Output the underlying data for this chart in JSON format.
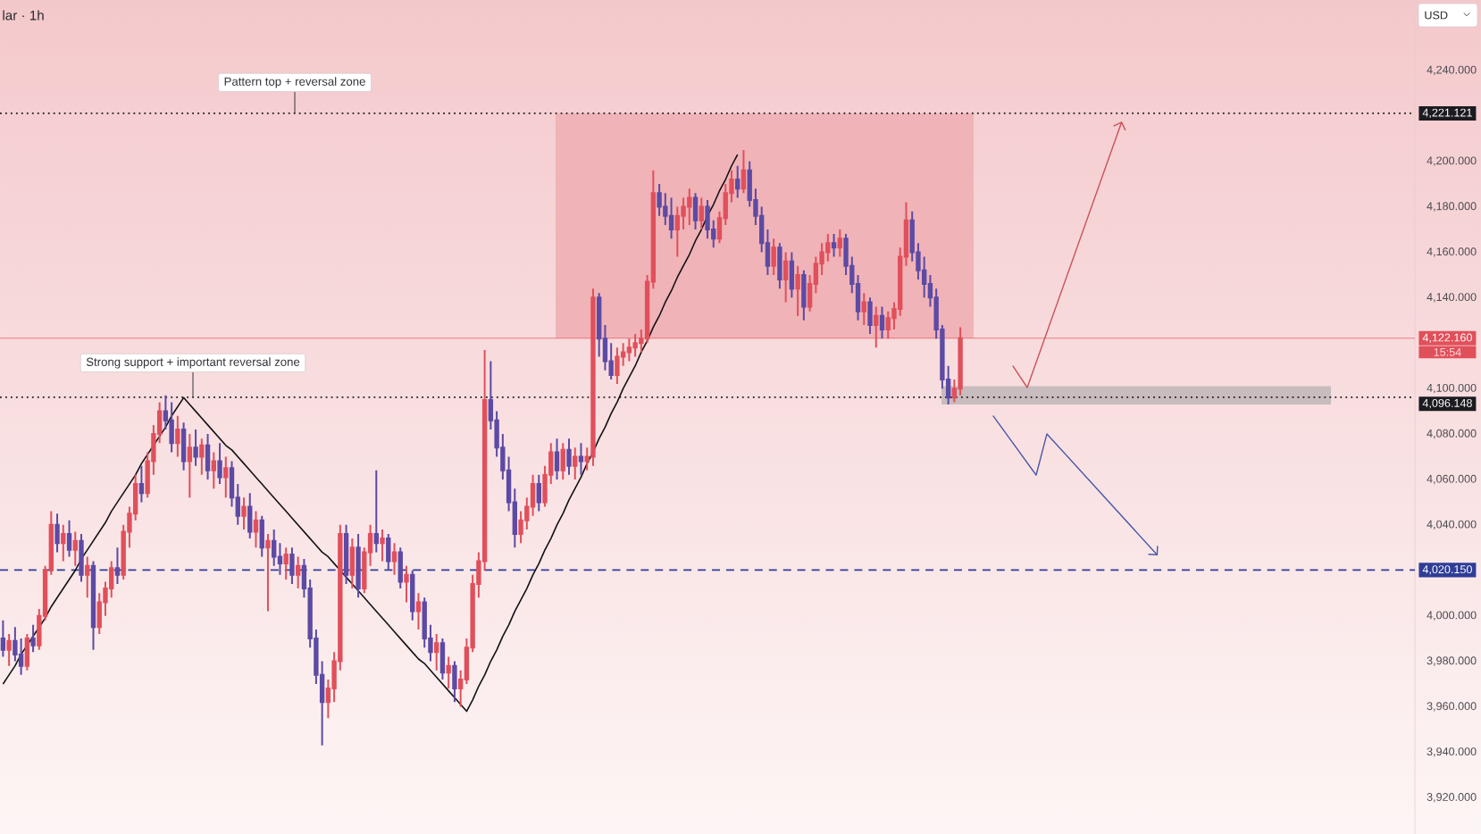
{
  "chart_data": {
    "type": "candlestick",
    "title": "lar · 1h",
    "tick_labels": "y",
    "categories": [
      null,
      null,
      null,
      null,
      null,
      null,
      null,
      null,
      null,
      null,
      null,
      null,
      null,
      null,
      null,
      null,
      null,
      null,
      null,
      null,
      null,
      null,
      null,
      null,
      null,
      null,
      null,
      null,
      null,
      null,
      null,
      null,
      null,
      null,
      null,
      null,
      null,
      null,
      null,
      null,
      null,
      null,
      null,
      null,
      null,
      null,
      null,
      null,
      null,
      null,
      null,
      null,
      null,
      null,
      null,
      null,
      null,
      null,
      null,
      null,
      null,
      null,
      null,
      null,
      null,
      null,
      null,
      null,
      null,
      null,
      null,
      null,
      null,
      null,
      null,
      null,
      null,
      null,
      null,
      null,
      null,
      null,
      null,
      null,
      null,
      null,
      null,
      null,
      null,
      null,
      null,
      null,
      null,
      null,
      null,
      null,
      null,
      null,
      null,
      null,
      null,
      null,
      null,
      null,
      null,
      null,
      null,
      null,
      null,
      null,
      null,
      null,
      null,
      null,
      null,
      null,
      null,
      null,
      null,
      null,
      null,
      null,
      null,
      null,
      null,
      null,
      null,
      null,
      null,
      null,
      null,
      null,
      null,
      null,
      null,
      null,
      null,
      null,
      null,
      null,
      null,
      null,
      null,
      null,
      null,
      null,
      null,
      null,
      null,
      null,
      null,
      null,
      null,
      null,
      null,
      null,
      null,
      null,
      null,
      null,
      null,
      null,
      null,
      null,
      null,
      null,
      null,
      null,
      null,
      null,
      null,
      null,
      null,
      null,
      null,
      null,
      null,
      null,
      null,
      null,
      null,
      null,
      null,
      null,
      null,
      null,
      null,
      null,
      null,
      null,
      null,
      null,
      null,
      null,
      null,
      null,
      null,
      null,
      null,
      null,
      null,
      null,
      null,
      null,
      null,
      null,
      null,
      null,
      null,
      null,
      null,
      null,
      null,
      null,
      null,
      null,
      null,
      null,
      null,
      null,
      null,
      null,
      null,
      null,
      null,
      null,
      null,
      null,
      null,
      null,
      null,
      null,
      null,
      null,
      null
    ],
    "ohlc": [
      [
        3990,
        3998,
        3982,
        3985
      ],
      [
        3985,
        3992,
        3978,
        3989
      ],
      [
        3989,
        3995,
        3980,
        3983
      ],
      [
        3983,
        3990,
        3974,
        3978
      ],
      [
        3978,
        3992,
        3976,
        3990
      ],
      [
        3990,
        3996,
        3984,
        3987
      ],
      [
        3987,
        4003,
        3985,
        4000
      ],
      [
        4000,
        4022,
        3998,
        4020
      ],
      [
        4020,
        4046,
        4018,
        4040
      ],
      [
        4040,
        4045,
        4028,
        4032
      ],
      [
        4032,
        4040,
        4024,
        4036
      ],
      [
        4036,
        4042,
        4026,
        4029
      ],
      [
        4029,
        4037,
        4022,
        4033
      ],
      [
        4033,
        4036,
        4015,
        4018
      ],
      [
        4018,
        4026,
        4008,
        4022
      ],
      [
        4022,
        4024,
        3985,
        3995
      ],
      [
        3995,
        4010,
        3992,
        4006
      ],
      [
        4006,
        4015,
        4000,
        4012
      ],
      [
        4012,
        4024,
        4008,
        4021
      ],
      [
        4021,
        4030,
        4014,
        4018
      ],
      [
        4018,
        4040,
        4016,
        4037
      ],
      [
        4037,
        4048,
        4030,
        4045
      ],
      [
        4045,
        4062,
        4042,
        4058
      ],
      [
        4058,
        4066,
        4050,
        4054
      ],
      [
        4054,
        4072,
        4052,
        4068
      ],
      [
        4068,
        4084,
        4062,
        4080
      ],
      [
        4080,
        4094,
        4076,
        4090
      ],
      [
        4090,
        4097,
        4082,
        4086
      ],
      [
        4086,
        4094,
        4072,
        4076
      ],
      [
        4076,
        4088,
        4070,
        4082
      ],
      [
        4082,
        4085,
        4064,
        4068
      ],
      [
        4068,
        4080,
        4052,
        4074
      ],
      [
        4074,
        4082,
        4066,
        4070
      ],
      [
        4070,
        4078,
        4062,
        4075
      ],
      [
        4075,
        4080,
        4060,
        4064
      ],
      [
        4064,
        4072,
        4056,
        4068
      ],
      [
        4068,
        4076,
        4058,
        4061
      ],
      [
        4061,
        4070,
        4052,
        4065
      ],
      [
        4065,
        4068,
        4048,
        4052
      ],
      [
        4052,
        4058,
        4040,
        4044
      ],
      [
        4044,
        4052,
        4038,
        4048
      ],
      [
        4048,
        4054,
        4034,
        4037
      ],
      [
        4037,
        4046,
        4030,
        4042
      ],
      [
        4042,
        4044,
        4026,
        4030
      ],
      [
        4030,
        4036,
        4002,
        4033
      ],
      [
        4033,
        4038,
        4022,
        4026
      ],
      [
        4026,
        4032,
        4018,
        4023
      ],
      [
        4023,
        4030,
        4016,
        4027
      ],
      [
        4027,
        4030,
        4014,
        4018
      ],
      [
        4018,
        4026,
        4012,
        4022
      ],
      [
        4022,
        4025,
        4008,
        4012
      ],
      [
        4012,
        4016,
        3986,
        3990
      ],
      [
        3990,
        3994,
        3970,
        3974
      ],
      [
        3974,
        3980,
        3943,
        3962
      ],
      [
        3962,
        3972,
        3955,
        3968
      ],
      [
        3968,
        3984,
        3962,
        3980
      ],
      [
        3980,
        4040,
        3976,
        4036
      ],
      [
        4036,
        4040,
        4014,
        4018
      ],
      [
        4018,
        4034,
        4012,
        4030
      ],
      [
        4030,
        4036,
        4008,
        4012
      ],
      [
        4012,
        4030,
        4010,
        4028
      ],
      [
        4028,
        4040,
        4022,
        4036
      ],
      [
        4036,
        4064,
        4028,
        4032
      ],
      [
        4032,
        4038,
        4024,
        4034
      ],
      [
        4034,
        4036,
        4020,
        4024
      ],
      [
        4024,
        4032,
        4018,
        4028
      ],
      [
        4028,
        4030,
        4012,
        4015
      ],
      [
        4015,
        4022,
        4006,
        4018
      ],
      [
        4018,
        4020,
        3998,
        4002
      ],
      [
        4002,
        4010,
        3994,
        4006
      ],
      [
        4006,
        4008,
        3986,
        3990
      ],
      [
        3990,
        3996,
        3980,
        3984
      ],
      [
        3984,
        3992,
        3976,
        3988
      ],
      [
        3988,
        3990,
        3972,
        3975
      ],
      [
        3975,
        3982,
        3968,
        3978
      ],
      [
        3978,
        3980,
        3962,
        3968
      ],
      [
        3968,
        3976,
        3960,
        3972
      ],
      [
        3972,
        3990,
        3970,
        3986
      ],
      [
        3986,
        4018,
        3984,
        4014
      ],
      [
        4014,
        4028,
        4008,
        4024
      ],
      [
        4024,
        4117,
        4020,
        4095
      ],
      [
        4095,
        4112,
        4082,
        4086
      ],
      [
        4086,
        4090,
        4070,
        4074
      ],
      [
        4074,
        4080,
        4060,
        4064
      ],
      [
        4064,
        4070,
        4046,
        4050
      ],
      [
        4050,
        4056,
        4030,
        4036
      ],
      [
        4036,
        4046,
        4032,
        4042
      ],
      [
        4042,
        4052,
        4038,
        4048
      ],
      [
        4048,
        4062,
        4044,
        4058
      ],
      [
        4058,
        4062,
        4046,
        4050
      ],
      [
        4050,
        4066,
        4048,
        4062
      ],
      [
        4062,
        4076,
        4058,
        4072
      ],
      [
        4072,
        4078,
        4060,
        4064
      ],
      [
        4064,
        4076,
        4060,
        4073
      ],
      [
        4073,
        4078,
        4062,
        4066
      ],
      [
        4066,
        4074,
        4060,
        4070
      ],
      [
        4070,
        4076,
        4062,
        4068
      ],
      [
        4068,
        4074,
        4064,
        4070
      ],
      [
        4070,
        4144,
        4066,
        4140
      ],
      [
        4140,
        4142,
        4114,
        4122
      ],
      [
        4122,
        4128,
        4108,
        4112
      ],
      [
        4112,
        4120,
        4104,
        4106
      ],
      [
        4106,
        4118,
        4102,
        4114
      ],
      [
        4114,
        4120,
        4110,
        4116
      ],
      [
        4116,
        4122,
        4112,
        4118
      ],
      [
        4118,
        4124,
        4114,
        4120
      ],
      [
        4120,
        4126,
        4116,
        4122
      ],
      [
        4122,
        4150,
        4120,
        4147
      ],
      [
        4147,
        4196,
        4144,
        4186
      ],
      [
        4186,
        4190,
        4176,
        4180
      ],
      [
        4180,
        4186,
        4172,
        4176
      ],
      [
        4176,
        4184,
        4166,
        4170
      ],
      [
        4170,
        4180,
        4158,
        4176
      ],
      [
        4176,
        4184,
        4170,
        4180
      ],
      [
        4180,
        4188,
        4172,
        4184
      ],
      [
        4184,
        4186,
        4170,
        4174
      ],
      [
        4174,
        4184,
        4170,
        4180
      ],
      [
        4180,
        4183,
        4166,
        4170
      ],
      [
        4170,
        4174,
        4162,
        4166
      ],
      [
        4166,
        4178,
        4164,
        4175
      ],
      [
        4175,
        4190,
        4172,
        4186
      ],
      [
        4186,
        4196,
        4182,
        4192
      ],
      [
        4192,
        4198,
        4184,
        4188
      ],
      [
        4188,
        4205,
        4186,
        4196
      ],
      [
        4196,
        4200,
        4180,
        4183
      ],
      [
        4183,
        4188,
        4172,
        4176
      ],
      [
        4176,
        4180,
        4160,
        4164
      ],
      [
        4164,
        4170,
        4150,
        4154
      ],
      [
        4154,
        4166,
        4150,
        4162
      ],
      [
        4162,
        4164,
        4144,
        4148
      ],
      [
        4148,
        4160,
        4138,
        4156
      ],
      [
        4156,
        4160,
        4140,
        4144
      ],
      [
        4144,
        4154,
        4132,
        4150
      ],
      [
        4150,
        4152,
        4130,
        4136
      ],
      [
        4136,
        4150,
        4134,
        4146
      ],
      [
        4146,
        4158,
        4142,
        4155
      ],
      [
        4155,
        4164,
        4150,
        4160
      ],
      [
        4160,
        4168,
        4156,
        4164
      ],
      [
        4164,
        4168,
        4158,
        4162
      ],
      [
        4162,
        4170,
        4158,
        4166
      ],
      [
        4166,
        4168,
        4150,
        4154
      ],
      [
        4154,
        4158,
        4142,
        4146
      ],
      [
        4146,
        4150,
        4130,
        4134
      ],
      [
        4134,
        4142,
        4128,
        4138
      ],
      [
        4138,
        4140,
        4124,
        4128
      ],
      [
        4128,
        4136,
        4118,
        4132
      ],
      [
        4132,
        4136,
        4122,
        4126
      ],
      [
        4126,
        4134,
        4122,
        4131
      ],
      [
        4131,
        4138,
        4126,
        4135
      ],
      [
        4135,
        4162,
        4132,
        4158
      ],
      [
        4158,
        4182,
        4154,
        4174
      ],
      [
        4174,
        4178,
        4156,
        4160
      ],
      [
        4160,
        4164,
        4148,
        4152
      ],
      [
        4152,
        4158,
        4140,
        4146
      ],
      [
        4146,
        4150,
        4136,
        4140
      ],
      [
        4140,
        4144,
        4122,
        4126
      ],
      [
        4126,
        4128,
        4100,
        4104
      ],
      [
        4104,
        4110,
        4093,
        4096
      ],
      [
        4096,
        4104,
        4094,
        4100
      ],
      [
        4100,
        4127,
        4097,
        4122.16
      ],
      null,
      null,
      null,
      null,
      null,
      null,
      null,
      null,
      null,
      null,
      null,
      null,
      null,
      null,
      null,
      null,
      null,
      null,
      null,
      null,
      null,
      null,
      null,
      null,
      null,
      null,
      null,
      null,
      null,
      null,
      null,
      null,
      null,
      null,
      null,
      null,
      null,
      null,
      null,
      null,
      null,
      null,
      null,
      null,
      null,
      null,
      null,
      null,
      null,
      null,
      null,
      null,
      null,
      null,
      null,
      null,
      null,
      null,
      null,
      null,
      null,
      null,
      null,
      null,
      null,
      null,
      null,
      null,
      null,
      null,
      null,
      null,
      null,
      null,
      null
    ],
    "colors": [
      "#5c4aa4",
      "#e0505b",
      "#5c4aa4",
      "#5c4aa4",
      "#e0505b",
      "#5c4aa4",
      "#e0505b",
      "#e0505b",
      "#e0505b",
      "#5c4aa4",
      "#e0505b",
      "#5c4aa4",
      "#e0505b",
      "#5c4aa4",
      "#e0505b",
      "#5c4aa4",
      "#e0505b",
      "#e0505b",
      "#e0505b",
      "#5c4aa4",
      "#e0505b",
      "#e0505b",
      "#e0505b",
      "#5c4aa4",
      "#e0505b",
      "#e0505b",
      "#e0505b",
      "#5c4aa4",
      "#5c4aa4",
      "#e0505b",
      "#5c4aa4",
      "#e0505b",
      "#5c4aa4",
      "#e0505b",
      "#5c4aa4",
      "#e0505b",
      "#5c4aa4",
      "#e0505b",
      "#5c4aa4",
      "#5c4aa4",
      "#e0505b",
      "#5c4aa4",
      "#e0505b",
      "#5c4aa4",
      "#e0505b",
      "#5c4aa4",
      "#5c4aa4",
      "#e0505b",
      "#5c4aa4",
      "#e0505b",
      "#5c4aa4",
      "#5c4aa4",
      "#5c4aa4",
      "#5c4aa4",
      "#e0505b",
      "#e0505b",
      "#e0505b",
      "#5c4aa4",
      "#e0505b",
      "#5c4aa4",
      "#e0505b",
      "#e0505b",
      "#5c4aa4",
      "#e0505b",
      "#5c4aa4",
      "#e0505b",
      "#5c4aa4",
      "#e0505b",
      "#5c4aa4",
      "#e0505b",
      "#5c4aa4",
      "#5c4aa4",
      "#e0505b",
      "#5c4aa4",
      "#e0505b",
      "#5c4aa4",
      "#e0505b",
      "#e0505b",
      "#e0505b",
      "#e0505b",
      "#e0505b",
      "#5c4aa4",
      "#5c4aa4",
      "#5c4aa4",
      "#5c4aa4",
      "#5c4aa4",
      "#e0505b",
      "#e0505b",
      "#e0505b",
      "#5c4aa4",
      "#e0505b",
      "#e0505b",
      "#5c4aa4",
      "#e0505b",
      "#5c4aa4",
      "#e0505b",
      "#5c4aa4",
      "#e0505b",
      "#e0505b",
      "#5c4aa4",
      "#5c4aa4",
      "#5c4aa4",
      "#e0505b",
      "#e0505b",
      "#e0505b",
      "#e0505b",
      "#e0505b",
      "#e0505b",
      "#e0505b",
      "#5c4aa4",
      "#5c4aa4",
      "#5c4aa4",
      "#e0505b",
      "#e0505b",
      "#e0505b",
      "#5c4aa4",
      "#e0505b",
      "#5c4aa4",
      "#5c4aa4",
      "#e0505b",
      "#e0505b",
      "#e0505b",
      "#5c4aa4",
      "#e0505b",
      "#5c4aa4",
      "#5c4aa4",
      "#5c4aa4",
      "#5c4aa4",
      "#e0505b",
      "#5c4aa4",
      "#e0505b",
      "#5c4aa4",
      "#e0505b",
      "#5c4aa4",
      "#e0505b",
      "#e0505b",
      "#e0505b",
      "#e0505b",
      "#5c4aa4",
      "#e0505b",
      "#5c4aa4",
      "#5c4aa4",
      "#5c4aa4",
      "#e0505b",
      "#5c4aa4",
      "#e0505b",
      "#5c4aa4",
      "#e0505b",
      "#e0505b",
      "#e0505b",
      "#e0505b",
      "#5c4aa4",
      "#5c4aa4",
      "#5c4aa4",
      "#5c4aa4",
      "#5c4aa4",
      "#5c4aa4",
      "#5c4aa4",
      "#e0505b",
      "#e0505b",
      null,
      null,
      null,
      null,
      null,
      null,
      null,
      null,
      null,
      null,
      null,
      null,
      null,
      null,
      null,
      null,
      null,
      null,
      null,
      null,
      null,
      null,
      null,
      null,
      null,
      null,
      null,
      null,
      null,
      null,
      null,
      null,
      null,
      null,
      null,
      null,
      null,
      null,
      null,
      null,
      null,
      null,
      null,
      null,
      null,
      null,
      null,
      null,
      null,
      null,
      null,
      null,
      null,
      null,
      null,
      null,
      null,
      null,
      null,
      null,
      null,
      null,
      null,
      null,
      null,
      null,
      null,
      null,
      null,
      null,
      null,
      null,
      null,
      null,
      null
    ],
    "series": [
      {
        "type": "line",
        "color": "#111114",
        "values": [
          3970,
          3974,
          3978,
          3983,
          3987,
          3991,
          3995,
          3999,
          4004,
          4008,
          4012,
          4016,
          4020,
          4025,
          4029,
          4033,
          4037,
          4041,
          4046,
          4050,
          4054,
          4058,
          4062,
          4067,
          4071,
          4075,
          4079,
          4083,
          4088,
          4092,
          4096,
          4093,
          4090,
          4087,
          4084,
          4081,
          4078,
          4075,
          4073,
          4070,
          4067,
          4064,
          4061,
          4058,
          4055,
          4052,
          4049,
          4046,
          4043,
          4040,
          4037,
          4034,
          4031,
          4028,
          4026,
          4023,
          4020,
          4017,
          4014,
          4011,
          4008,
          4005,
          4002,
          3999,
          3996,
          3993,
          3990,
          3987,
          3984,
          3981,
          3979,
          3976,
          3973,
          3970,
          3967,
          3964,
          3961,
          3958,
          3963,
          3969,
          3974,
          3980,
          3985,
          3991,
          3996,
          4002,
          4007,
          4012,
          4018,
          4023,
          4029,
          4034,
          4040,
          4045,
          4051,
          4056,
          4061,
          4067,
          4072,
          4078,
          4083,
          4089,
          4094,
          4100,
          4105,
          4110,
          4116,
          4121,
          4127,
          4132,
          4138,
          4143,
          4149,
          4154,
          4159,
          4165,
          4170,
          4176,
          4181,
          4187,
          4192,
          4198,
          4203,
          null,
          null,
          null,
          null,
          null,
          null,
          null,
          null,
          null,
          null,
          null,
          null,
          null,
          null,
          null,
          null,
          null,
          null,
          null,
          null,
          null,
          null,
          null,
          null,
          null,
          null,
          null,
          null,
          null,
          null,
          null,
          null,
          null,
          null,
          null,
          null,
          null,
          null,
          null,
          null,
          null,
          null,
          null,
          null,
          null,
          null,
          null,
          null,
          null,
          null,
          null,
          null,
          null,
          null,
          null,
          null,
          null,
          null,
          null,
          null,
          null,
          null,
          null,
          null,
          null,
          null,
          null,
          null,
          null,
          null,
          null,
          null,
          null,
          null,
          null,
          null,
          null,
          null,
          null,
          null,
          null,
          null,
          null,
          null,
          null,
          null,
          null,
          null,
          null,
          null,
          null,
          null,
          null,
          null,
          null,
          null,
          null,
          null,
          null,
          null,
          null,
          null,
          null,
          null,
          null,
          null,
          null,
          null,
          null,
          null,
          null,
          null
        ]
      }
    ],
    "ylim": [
      3904,
      4271
    ],
    "yticks": [
      {
        "value": 3920,
        "label": "3,920.000"
      },
      {
        "value": 3940,
        "label": "3,940.000"
      },
      {
        "value": 3960,
        "label": "3,960.000"
      },
      {
        "value": 3980,
        "label": "3,980.000"
      },
      {
        "value": 4000,
        "label": "4,000.000"
      },
      {
        "value": 4040,
        "label": "4,040.000"
      },
      {
        "value": 4060,
        "label": "4,060.000"
      },
      {
        "value": 4080,
        "label": "4,080.000"
      },
      {
        "value": 4100,
        "label": "4,100.000"
      },
      {
        "value": 4140,
        "label": "4,140.000"
      },
      {
        "value": 4160,
        "label": "4,160.000"
      },
      {
        "value": 4180,
        "label": "4,180.000"
      },
      {
        "value": 4200,
        "label": "4,200.000"
      },
      {
        "value": 4240,
        "label": "4,240.000"
      }
    ],
    "bands": [
      {
        "axis": "y",
        "from": 4122.16,
        "to": 4221.121,
        "color": "#f0b3b7"
      },
      {
        "axis": "y",
        "from": 4093,
        "to": 4101,
        "color": "#c8bcbe"
      }
    ],
    "ref_lines": [
      {
        "axis": "y",
        "value": 4221.121,
        "label": "4,221.121",
        "color": "#1c1b20",
        "line_style": "dotted"
      },
      {
        "axis": "y",
        "value": 4122.16,
        "label": "4,122.160",
        "color": "#e0505b",
        "line_style": "solid"
      },
      {
        "axis": "y",
        "value": 4096.148,
        "label": "4,096.148",
        "color": "#1c1b20",
        "line_style": "dotted"
      },
      {
        "axis": "y",
        "value": 4020.15,
        "label": "4,020.150",
        "color": "#2e3d96",
        "line_style": "dashed"
      }
    ],
    "annotations": [
      {
        "text": "Pattern top + reversal zone",
        "y": 4221.121
      },
      {
        "text": "Strong support + important reversal zone",
        "y": 4096.148
      },
      "15:54",
      "USD"
    ]
  }
}
